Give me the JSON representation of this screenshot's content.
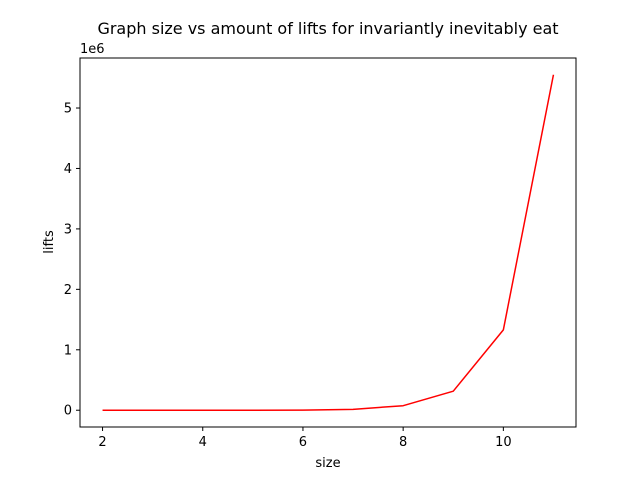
{
  "chart_data": {
    "type": "line",
    "title": "Graph size vs amount of lifts for invariantly inevitably eat",
    "xlabel": "size",
    "ylabel": "lifts",
    "offset_label": "1e6",
    "x": [
      2,
      3,
      4,
      5,
      6,
      7,
      8,
      9,
      10,
      11
    ],
    "series": [
      {
        "values": [
          0,
          0,
          0,
          0,
          2000,
          15000,
          75000,
          315000,
          1330000,
          5550000
        ],
        "color": "#ff0000"
      }
    ],
    "xlim": [
      1.55,
      11.45
    ],
    "ylim": [
      -277500,
      5827500
    ],
    "xticks": [
      2,
      4,
      6,
      8,
      10
    ],
    "xtick_labels": [
      "2",
      "4",
      "6",
      "8",
      "10"
    ],
    "yticks": [
      0,
      1000000,
      2000000,
      3000000,
      4000000,
      5000000
    ],
    "ytick_labels": [
      "0",
      "1",
      "2",
      "3",
      "4",
      "5"
    ],
    "grid": false,
    "legend": "none"
  }
}
